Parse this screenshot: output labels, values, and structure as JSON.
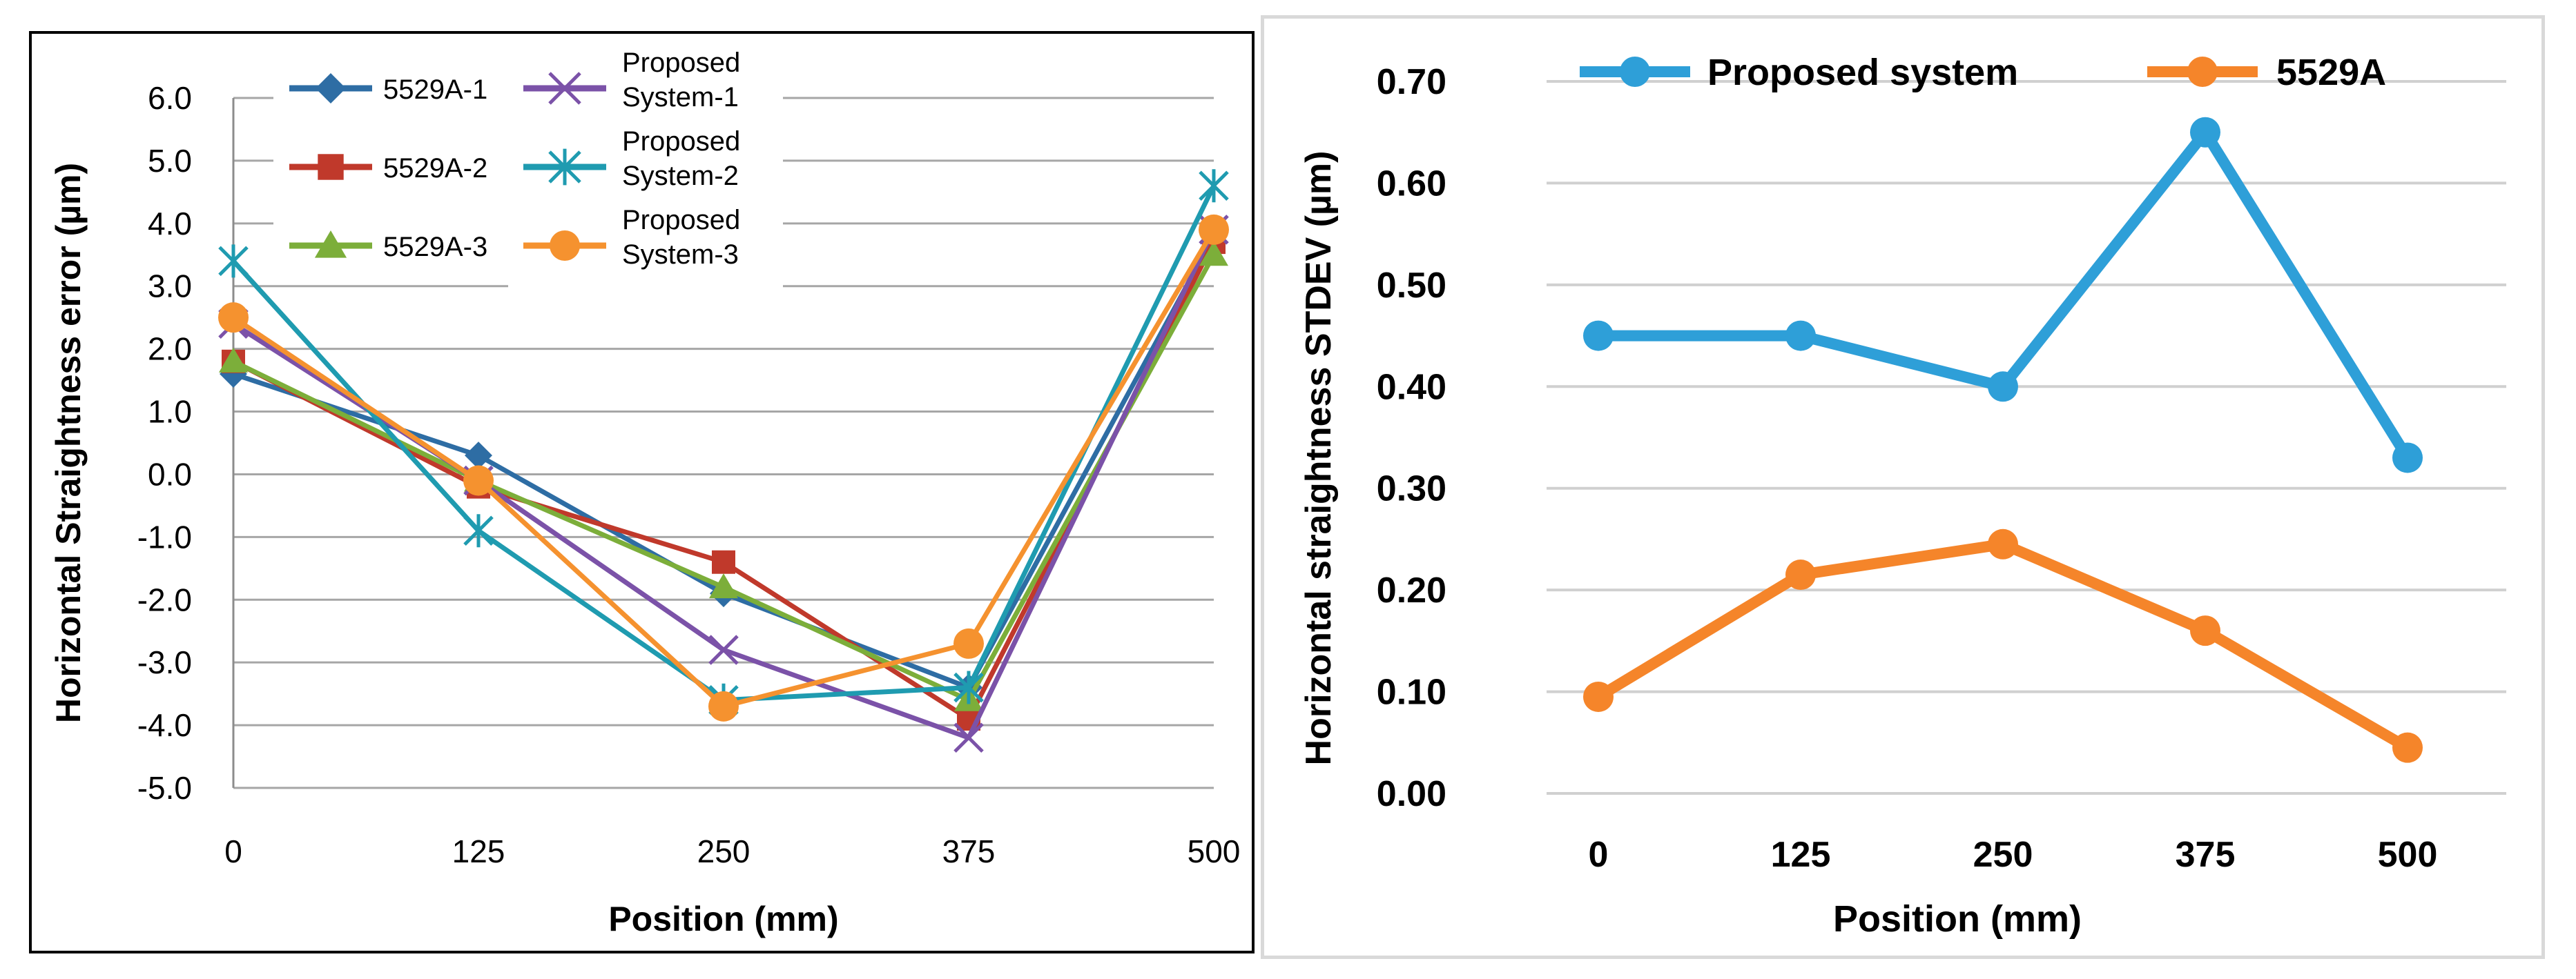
{
  "chart_data": [
    {
      "type": "line",
      "title": "",
      "xlabel": "Position (mm)",
      "ylabel": "Horizontal Straightness error (µm)",
      "x": [
        0,
        125,
        250,
        375,
        500
      ],
      "x_tick_labels": [
        "0",
        "125",
        "250",
        "375",
        "500"
      ],
      "y_tick_labels": [
        "6.0",
        "5.0",
        "4.0",
        "3.0",
        "2.0",
        "1.0",
        "0.0",
        "-1.0",
        "-2.0",
        "-3.0",
        "-4.0",
        "-5.0"
      ],
      "ylim": [
        -5.0,
        6.0
      ],
      "grid": "horizontal",
      "legend_position": "top-left",
      "series": [
        {
          "name": "5529A-1",
          "marker": "diamond",
          "color": "#2e6da4",
          "values": [
            1.6,
            0.3,
            -1.9,
            -3.4,
            3.8
          ]
        },
        {
          "name": "5529A-2",
          "marker": "square",
          "color": "#c0392b",
          "values": [
            1.8,
            -0.2,
            -1.4,
            -3.9,
            3.7
          ]
        },
        {
          "name": "5529A-3",
          "marker": "triangle",
          "color": "#7cae3a",
          "values": [
            1.8,
            -0.1,
            -1.8,
            -3.6,
            3.5
          ]
        },
        {
          "name": "Proposed System-1",
          "marker": "x",
          "color": "#7b52a8",
          "values": [
            2.4,
            -0.1,
            -2.8,
            -4.2,
            3.9
          ]
        },
        {
          "name": "Proposed System-2",
          "marker": "asterisk",
          "color": "#1f9bb0",
          "values": [
            3.4,
            -0.9,
            -3.6,
            -3.4,
            4.6
          ]
        },
        {
          "name": "Proposed System-3",
          "marker": "circle",
          "color": "#f5922f",
          "values": [
            2.5,
            -0.1,
            -3.7,
            -2.7,
            3.9
          ]
        }
      ],
      "legend_labels": [
        {
          "lines": [
            "5529A-1"
          ]
        },
        {
          "lines": [
            "5529A-2"
          ]
        },
        {
          "lines": [
            "5529A-3"
          ]
        },
        {
          "lines": [
            "Proposed",
            "System-1"
          ]
        },
        {
          "lines": [
            "Proposed",
            "System-2"
          ]
        },
        {
          "lines": [
            "Proposed",
            "System-3"
          ]
        }
      ]
    },
    {
      "type": "line",
      "title": "",
      "xlabel": "Position (mm)",
      "ylabel": "Horizontal straightness STDEV (µm)",
      "x": [
        0,
        125,
        250,
        375,
        500
      ],
      "x_tick_labels": [
        "0",
        "125",
        "250",
        "375",
        "500"
      ],
      "y_tick_labels": [
        "0.70",
        "0.60",
        "0.50",
        "0.40",
        "0.30",
        "0.20",
        "0.10",
        "0.00"
      ],
      "ylim": [
        0.0,
        0.7
      ],
      "grid": "horizontal",
      "legend_position": "top",
      "series": [
        {
          "name": "Proposed system",
          "marker": "circle",
          "color": "#2e9fd8",
          "values": [
            0.45,
            0.45,
            0.4,
            0.65,
            0.33
          ]
        },
        {
          "name": "5529A",
          "marker": "circle",
          "color": "#f5852a",
          "values": [
            0.095,
            0.215,
            0.245,
            0.16,
            0.045
          ]
        }
      ]
    }
  ]
}
